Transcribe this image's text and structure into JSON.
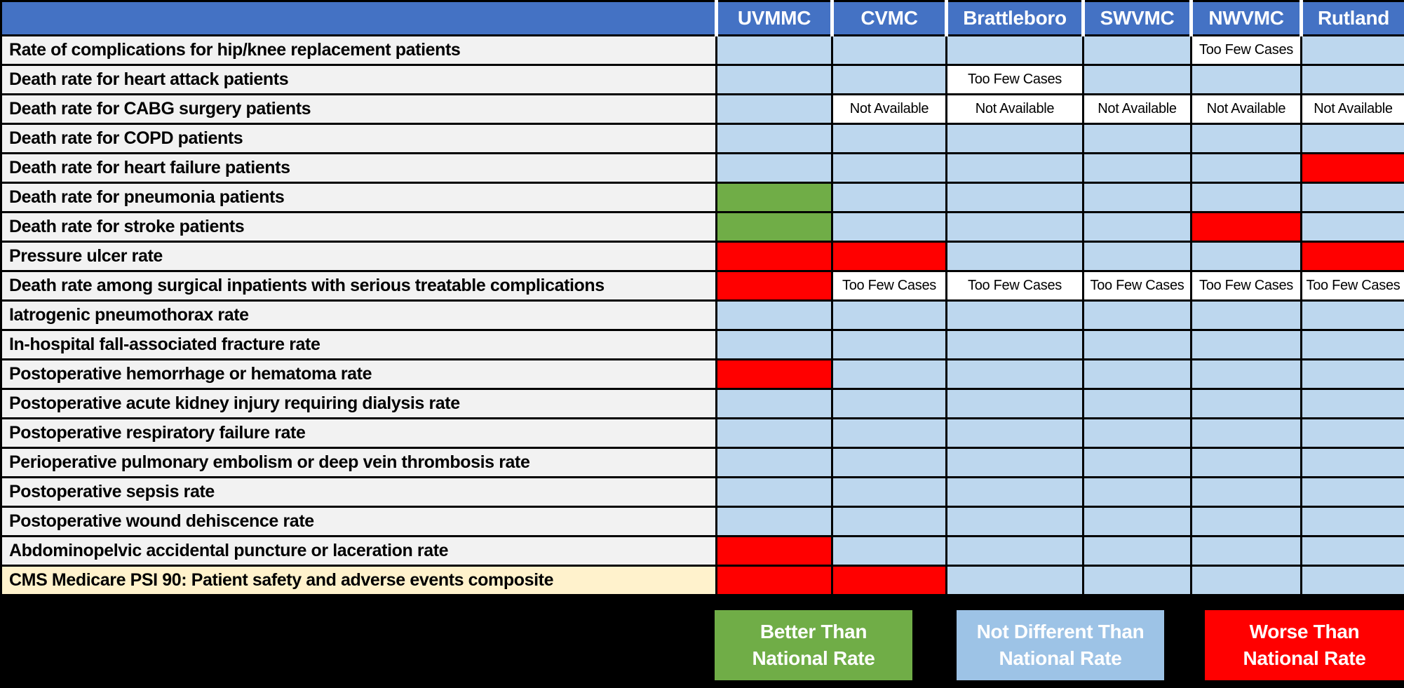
{
  "chart_data": {
    "type": "heatmap",
    "title": "",
    "columns": [
      "UVMMC",
      "CVMC",
      "Brattleboro",
      "SWVMC",
      "NWVMC",
      "Rutland"
    ],
    "rows": [
      "Rate of complications for hip/knee replacement patients",
      "Death rate for heart attack patients",
      "Death rate for CABG surgery patients",
      "Death rate for COPD patients",
      "Death rate for heart failure patients",
      "Death rate for pneumonia patients",
      "Death rate for stroke patients",
      "Pressure ulcer rate",
      "Death rate among surgical inpatients with serious treatable complications",
      "Iatrogenic pneumothorax rate",
      "In-hospital fall-associated fracture rate",
      "Postoperative hemorrhage or hematoma rate",
      "Postoperative acute kidney injury requiring dialysis rate",
      "Postoperative respiratory failure rate",
      "Perioperative pulmonary embolism or deep vein thrombosis rate",
      "Postoperative sepsis rate",
      "Postoperative wound dehiscence rate",
      "Abdominopelvic accidental puncture or laceration rate",
      "CMS Medicare PSI 90: Patient safety and adverse events composite"
    ],
    "values": [
      [
        "nd",
        "nd",
        "nd",
        "nd",
        "few",
        "nd"
      ],
      [
        "nd",
        "nd",
        "few",
        "nd",
        "nd",
        "nd"
      ],
      [
        "nd",
        "na",
        "na",
        "na",
        "na",
        "na"
      ],
      [
        "nd",
        "nd",
        "nd",
        "nd",
        "nd",
        "nd"
      ],
      [
        "nd",
        "nd",
        "nd",
        "nd",
        "nd",
        "worse"
      ],
      [
        "better",
        "nd",
        "nd",
        "nd",
        "nd",
        "nd"
      ],
      [
        "better",
        "nd",
        "nd",
        "nd",
        "worse",
        "nd"
      ],
      [
        "worse",
        "worse",
        "nd",
        "nd",
        "nd",
        "worse"
      ],
      [
        "worse",
        "few",
        "few",
        "few",
        "few",
        "few"
      ],
      [
        "nd",
        "nd",
        "nd",
        "nd",
        "nd",
        "nd"
      ],
      [
        "nd",
        "nd",
        "nd",
        "nd",
        "nd",
        "nd"
      ],
      [
        "worse",
        "nd",
        "nd",
        "nd",
        "nd",
        "nd"
      ],
      [
        "nd",
        "nd",
        "nd",
        "nd",
        "nd",
        "nd"
      ],
      [
        "nd",
        "nd",
        "nd",
        "nd",
        "nd",
        "nd"
      ],
      [
        "nd",
        "nd",
        "nd",
        "nd",
        "nd",
        "nd"
      ],
      [
        "nd",
        "nd",
        "nd",
        "nd",
        "nd",
        "nd"
      ],
      [
        "nd",
        "nd",
        "nd",
        "nd",
        "nd",
        "nd"
      ],
      [
        "worse",
        "nd",
        "nd",
        "nd",
        "nd",
        "nd"
      ],
      [
        "worse",
        "worse",
        "nd",
        "nd",
        "nd",
        "nd"
      ]
    ],
    "value_legend": {
      "better": "Better Than National Rate",
      "nd": "Not Different Than National Rate",
      "worse": "Worse Than National Rate",
      "few": "Too Few Cases",
      "na": "Not Available"
    },
    "highlighted_row_indexes": [
      18
    ]
  },
  "labels": {
    "too_few": "Too Few Cases",
    "not_available": "Not Available"
  },
  "legend": {
    "items": [
      {
        "key": "better",
        "lines": [
          "Better Than",
          "National Rate"
        ],
        "label": "Better Than National Rate",
        "color": "#70AD47",
        "text_color": "#FFFFFF"
      },
      {
        "key": "not-different",
        "lines": [
          "Not Different Than",
          "National Rate"
        ],
        "label": "Not Different Than National Rate",
        "color": "#9DC3E6",
        "text_color": "#FFFFFF"
      },
      {
        "key": "worse",
        "lines": [
          "Worse Than",
          "National Rate"
        ],
        "label": "Worse Than National Rate",
        "color": "#FF0000",
        "text_color": "#FFFFFF"
      }
    ]
  },
  "colors": {
    "header_blue": "#4472C4",
    "cell_not_different": "#BDD7EE",
    "cell_better": "#70AD47",
    "cell_worse": "#FF0000",
    "cell_text_bg": "#FFFFFF",
    "metric_label_bg": "#F2F2F2",
    "highlight_label_bg": "#FFF2CC",
    "legend_not_different": "#9DC3E6",
    "background": "#000000"
  }
}
